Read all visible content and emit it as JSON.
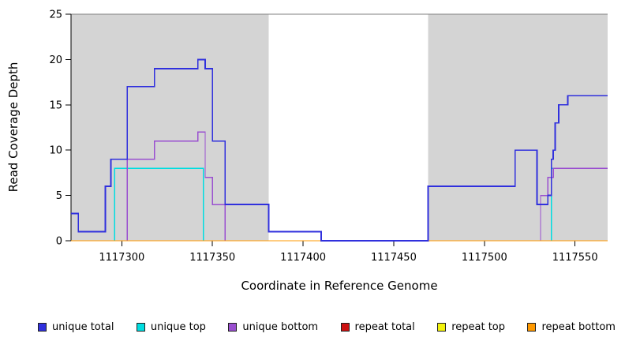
{
  "chart_data": {
    "type": "line",
    "subtype": "step-coverage-plot",
    "title": "",
    "xlabel": "Coordinate in Reference Genome",
    "ylabel": "Read Coverage Depth",
    "xlim": [
      1117272,
      1117568
    ],
    "ylim": [
      0,
      25
    ],
    "xticks": [
      1117300,
      1117350,
      1117400,
      1117450,
      1117500,
      1117550
    ],
    "yticks": [
      0,
      5,
      10,
      15,
      20,
      25
    ],
    "grid": false,
    "legend_position": "bottom",
    "plot_bg": "#ffffff",
    "axis_color": "#000000",
    "top_border_color": "#7f7f7f",
    "shaded_regions": [
      {
        "x0": 1117272,
        "x1": 1117381,
        "color": "#d4d4d4"
      },
      {
        "x0": 1117469,
        "x1": 1117568,
        "color": "#d4d4d4"
      }
    ],
    "series": [
      {
        "name": "unique total",
        "color": "#3030dd",
        "z": 6,
        "lw": 1.8,
        "points": [
          [
            1117272,
            3
          ],
          [
            1117276,
            3
          ],
          [
            1117276,
            1
          ],
          [
            1117291,
            1
          ],
          [
            1117291,
            6
          ],
          [
            1117294,
            6
          ],
          [
            1117294,
            9
          ],
          [
            1117303,
            9
          ],
          [
            1117303,
            17
          ],
          [
            1117318,
            17
          ],
          [
            1117318,
            19
          ],
          [
            1117342,
            19
          ],
          [
            1117342,
            20
          ],
          [
            1117346,
            20
          ],
          [
            1117346,
            19
          ],
          [
            1117350,
            19
          ],
          [
            1117350,
            11
          ],
          [
            1117357,
            11
          ],
          [
            1117357,
            4
          ],
          [
            1117381,
            4
          ],
          [
            1117381,
            1
          ],
          [
            1117410,
            1
          ],
          [
            1117410,
            0
          ],
          [
            1117469,
            0
          ],
          [
            1117469,
            6
          ],
          [
            1117517,
            6
          ],
          [
            1117517,
            10
          ],
          [
            1117529,
            10
          ],
          [
            1117529,
            4
          ],
          [
            1117535,
            4
          ],
          [
            1117535,
            5
          ],
          [
            1117537,
            5
          ],
          [
            1117537,
            9
          ],
          [
            1117538,
            9
          ],
          [
            1117538,
            10
          ],
          [
            1117539,
            10
          ],
          [
            1117539,
            13
          ],
          [
            1117541,
            13
          ],
          [
            1117541,
            15
          ],
          [
            1117546,
            15
          ],
          [
            1117546,
            16
          ],
          [
            1117568,
            16
          ]
        ]
      },
      {
        "name": "unique top",
        "color": "#00dde0",
        "z": 3,
        "lw": 1.3,
        "points": [
          [
            1117272,
            0
          ],
          [
            1117296,
            0
          ],
          [
            1117296,
            8
          ],
          [
            1117345,
            8
          ],
          [
            1117345,
            0
          ],
          [
            1117537,
            0
          ],
          [
            1117537,
            8
          ],
          [
            1117568,
            8
          ]
        ]
      },
      {
        "name": "unique bottom",
        "color": "#9a4fd0",
        "z": 4,
        "lw": 1.3,
        "points": [
          [
            1117272,
            0
          ],
          [
            1117303,
            0
          ],
          [
            1117303,
            9
          ],
          [
            1117318,
            9
          ],
          [
            1117318,
            11
          ],
          [
            1117342,
            11
          ],
          [
            1117342,
            12
          ],
          [
            1117346,
            12
          ],
          [
            1117346,
            7
          ],
          [
            1117350,
            7
          ],
          [
            1117350,
            4
          ],
          [
            1117357,
            4
          ],
          [
            1117357,
            0
          ],
          [
            1117531,
            0
          ],
          [
            1117531,
            5
          ],
          [
            1117535,
            5
          ],
          [
            1117535,
            7
          ],
          [
            1117538,
            7
          ],
          [
            1117538,
            8
          ],
          [
            1117568,
            8
          ]
        ]
      },
      {
        "name": "repeat total",
        "color": "#cc1111",
        "z": 1,
        "lw": 1.3,
        "points": [
          [
            1117272,
            0
          ],
          [
            1117568,
            0
          ]
        ]
      },
      {
        "name": "repeat top",
        "color": "#f2f20c",
        "z": 2,
        "lw": 1.3,
        "points": [
          [
            1117272,
            0
          ],
          [
            1117568,
            0
          ]
        ]
      },
      {
        "name": "repeat bottom",
        "color": "#ff9900",
        "z": 5,
        "lw": 1.3,
        "points": [
          [
            1117272,
            0
          ],
          [
            1117568,
            0
          ]
        ]
      }
    ]
  }
}
